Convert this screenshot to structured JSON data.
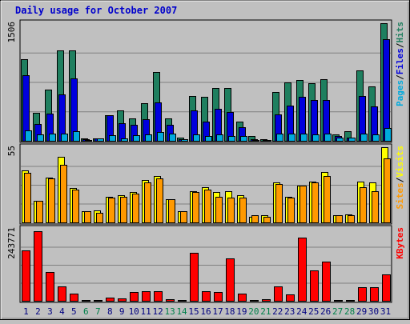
{
  "chart_data": {
    "type": "bar",
    "title": "Daily usage for October 2007",
    "categories": [
      "1",
      "2",
      "3",
      "4",
      "5",
      "6",
      "7",
      "8",
      "9",
      "10",
      "11",
      "12",
      "13",
      "14",
      "15",
      "16",
      "17",
      "18",
      "19",
      "20",
      "21",
      "22",
      "23",
      "24",
      "25",
      "26",
      "27",
      "28",
      "29",
      "30",
      "31"
    ],
    "weekend_days": [
      "6",
      "7",
      "13",
      "14",
      "20",
      "21",
      "27",
      "28"
    ],
    "panels": [
      {
        "name": "top",
        "axis_max_label": "1506",
        "ylim": [
          0,
          1506
        ],
        "right_label": [
          "Pages",
          "Files",
          "Hits"
        ],
        "series": [
          {
            "name": "Hits",
            "color": "#1f7f5f",
            "values": [
              1050,
              360,
              660,
              1160,
              1160,
              35,
              35,
              330,
              390,
              290,
              480,
              880,
              290,
              40,
              570,
              560,
              680,
              680,
              250,
              60,
              20,
              630,
              750,
              780,
              740,
              790,
              80,
              120,
              900,
              700,
              1506
            ]
          },
          {
            "name": "Files",
            "color": "#0000dd",
            "values": [
              840,
              220,
              350,
              590,
              800,
              25,
              30,
              330,
              230,
              200,
              280,
              490,
              200,
              20,
              390,
              250,
              410,
              370,
              170,
              20,
              10,
              340,
              450,
              560,
              520,
              520,
              60,
              40,
              570,
              440,
              1300
            ]
          },
          {
            "name": "Pages",
            "color": "#00aadd",
            "values": [
              135,
              80,
              90,
              90,
              120,
              10,
              30,
              70,
              30,
              70,
              80,
              110,
              90,
              20,
              85,
              65,
              85,
              65,
              60,
              10,
              10,
              90,
              95,
              90,
              85,
              90,
              40,
              40,
              90,
              85,
              160
            ]
          }
        ]
      },
      {
        "name": "middle",
        "axis_max_label": "55",
        "ylim": [
          0,
          55
        ],
        "right_label": [
          "Sites",
          "Visits"
        ],
        "series": [
          {
            "name": "Visits",
            "color": "#ffff00",
            "values": [
              38,
              16,
              33,
              48,
              25,
              8,
              9,
              19,
              20,
              22,
              31,
              34,
              17,
              8,
              23,
              26,
              22,
              23,
              20,
              4,
              5,
              29,
              19,
              27,
              30,
              37,
              5,
              6,
              30,
              29,
              55
            ]
          },
          {
            "name": "Sites",
            "color": "#ff9900",
            "values": [
              36,
              16,
              32,
              42,
              24,
              8,
              7,
              18,
              19,
              21,
              29,
              32,
              17,
              8,
              22,
              24,
              19,
              18,
              18,
              5,
              4,
              28,
              18,
              27,
              29,
              34,
              5,
              5,
              26,
              23,
              47
            ]
          }
        ]
      },
      {
        "name": "bottom",
        "axis_max_label": "243771",
        "ylim": [
          0,
          243771
        ],
        "right_label": [
          "KBytes"
        ],
        "series": [
          {
            "name": "KBytes",
            "color": "#ff0000",
            "values": [
              170000,
              236000,
              97000,
              50000,
              25000,
              2000,
              4000,
              11000,
              7000,
              29000,
              32000,
              33000,
              5000,
              3000,
              162000,
              32000,
              30000,
              143000,
              24000,
              2000,
              6000,
              49000,
              22000,
              213000,
              102000,
              133000,
              2000,
              4000,
              45000,
              45000,
              90000
            ]
          }
        ]
      }
    ]
  },
  "colors": {
    "background": "#c0c0c0",
    "plot_bg": "#c0c0c0",
    "grid": "#808080",
    "title": "#0000cc",
    "label_weekday": "#000080",
    "label_weekend": "#00804a",
    "axis_text": "#000000",
    "right_label_separator": "#000000"
  }
}
